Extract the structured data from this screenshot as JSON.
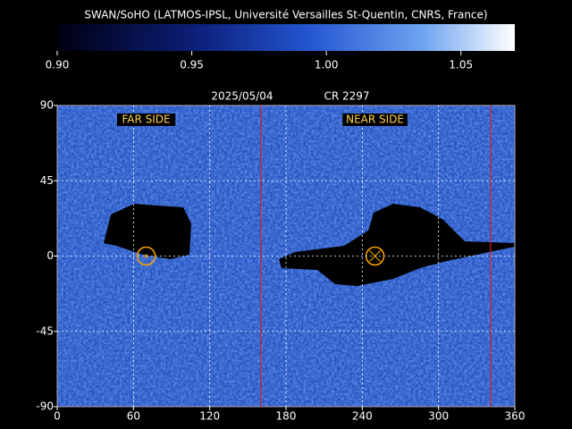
{
  "chart_data": {
    "type": "heatmap",
    "title": "SWAN/SoHO (LATMOS-IPSL, Université Versailles St-Quentin, CNRS, France)",
    "colorbar": {
      "lim": [
        0.9,
        1.07
      ],
      "ticks": [
        {
          "value": 0.9,
          "label": "0.90"
        },
        {
          "value": 0.95,
          "label": "0.95"
        },
        {
          "value": 1.0,
          "label": "1.00"
        },
        {
          "value": 1.05,
          "label": "1.05"
        }
      ]
    },
    "date": "2025/05/04",
    "rotation": "CR 2297",
    "xlim": [
      0,
      360
    ],
    "xticks": [
      0,
      60,
      120,
      180,
      240,
      300,
      360
    ],
    "ylim": [
      -90,
      90
    ],
    "yticks": [
      90,
      45,
      0,
      -45,
      -90
    ],
    "grid": true,
    "markers": [
      {
        "label": "FAR SIDE",
        "x": 70,
        "y": 0
      },
      {
        "label": "NEAR SIDE",
        "x": 250,
        "y": 0
      }
    ],
    "red_lines": [
      160,
      341
    ]
  }
}
